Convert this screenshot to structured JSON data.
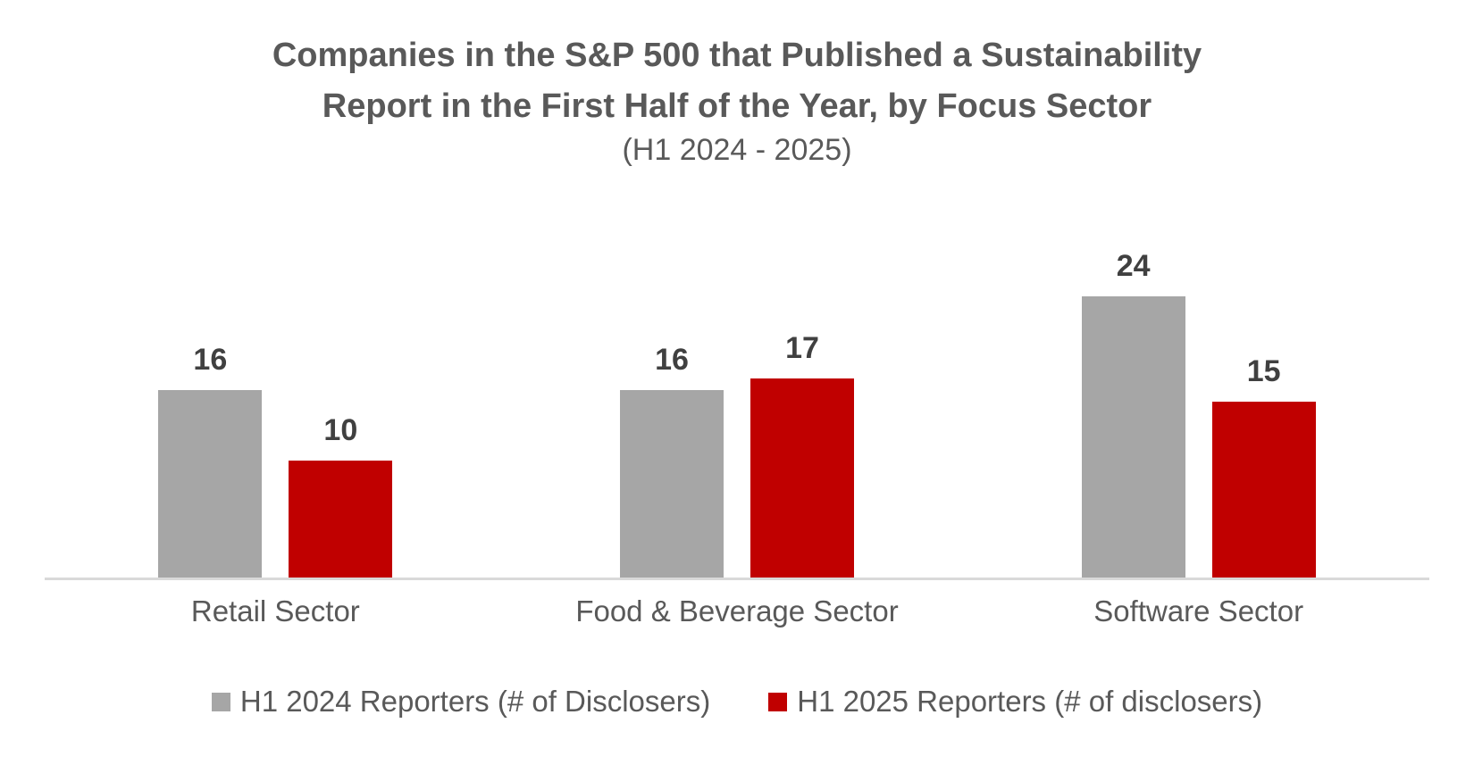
{
  "chart_data": {
    "type": "bar",
    "title": "Companies in the S&P 500 that Published a Sustainability Report in the First Half of the Year, by Focus Sector",
    "title_lines": [
      "Companies in the S&P 500 that Published a Sustainability",
      "Report in the First Half of the Year, by Focus Sector"
    ],
    "subtitle": "(H1 2024 - 2025)",
    "categories": [
      "Retail Sector",
      "Food & Beverage Sector",
      "Software Sector"
    ],
    "series": [
      {
        "name": "H1 2024 Reporters (# of Disclosers)",
        "color": "#A6A6A6",
        "values": [
          16,
          16,
          24
        ]
      },
      {
        "name": "H1 2025 Reporters (# of disclosers)",
        "color": "#C00000",
        "values": [
          10,
          17,
          15
        ]
      }
    ],
    "xlabel": "",
    "ylabel": "",
    "ylim": [
      0,
      24
    ],
    "grid": false,
    "data_labels": true,
    "legend_position": "bottom"
  },
  "colors": {
    "title_text": "#595959",
    "data_label_text": "#404040",
    "category_label_text": "#595959",
    "legend_text": "#595959",
    "axis_line": "#D9D9D9",
    "background": "#FFFFFF"
  }
}
